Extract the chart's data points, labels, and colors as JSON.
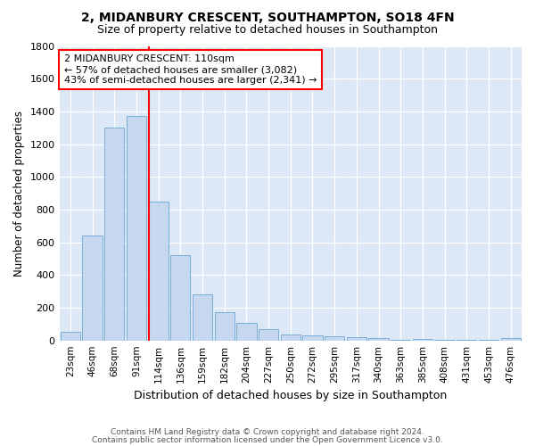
{
  "title1": "2, MIDANBURY CRESCENT, SOUTHAMPTON, SO18 4FN",
  "title2": "Size of property relative to detached houses in Southampton",
  "xlabel": "Distribution of detached houses by size in Southampton",
  "ylabel": "Number of detached properties",
  "categories": [
    "23sqm",
    "46sqm",
    "68sqm",
    "91sqm",
    "114sqm",
    "136sqm",
    "159sqm",
    "182sqm",
    "204sqm",
    "227sqm",
    "250sqm",
    "272sqm",
    "295sqm",
    "317sqm",
    "340sqm",
    "363sqm",
    "385sqm",
    "408sqm",
    "431sqm",
    "453sqm",
    "476sqm"
  ],
  "values": [
    55,
    640,
    1300,
    1370,
    850,
    520,
    280,
    175,
    110,
    70,
    35,
    30,
    25,
    20,
    15,
    5,
    10,
    5,
    5,
    2,
    15
  ],
  "bar_color": "#c5d8f0",
  "bar_edge_color": "#7aaed6",
  "red_line_index": 4,
  "ylim": [
    0,
    1800
  ],
  "yticks": [
    0,
    200,
    400,
    600,
    800,
    1000,
    1200,
    1400,
    1600,
    1800
  ],
  "annotation_text": "2 MIDANBURY CRESCENT: 110sqm\n← 57% of detached houses are smaller (3,082)\n43% of semi-detached houses are larger (2,341) →",
  "annotation_box_color": "white",
  "annotation_box_edge_color": "red",
  "background_color": "#dce8f5",
  "footer1": "Contains HM Land Registry data © Crown copyright and database right 2024.",
  "footer2": "Contains public sector information licensed under the Open Government Licence v3.0."
}
